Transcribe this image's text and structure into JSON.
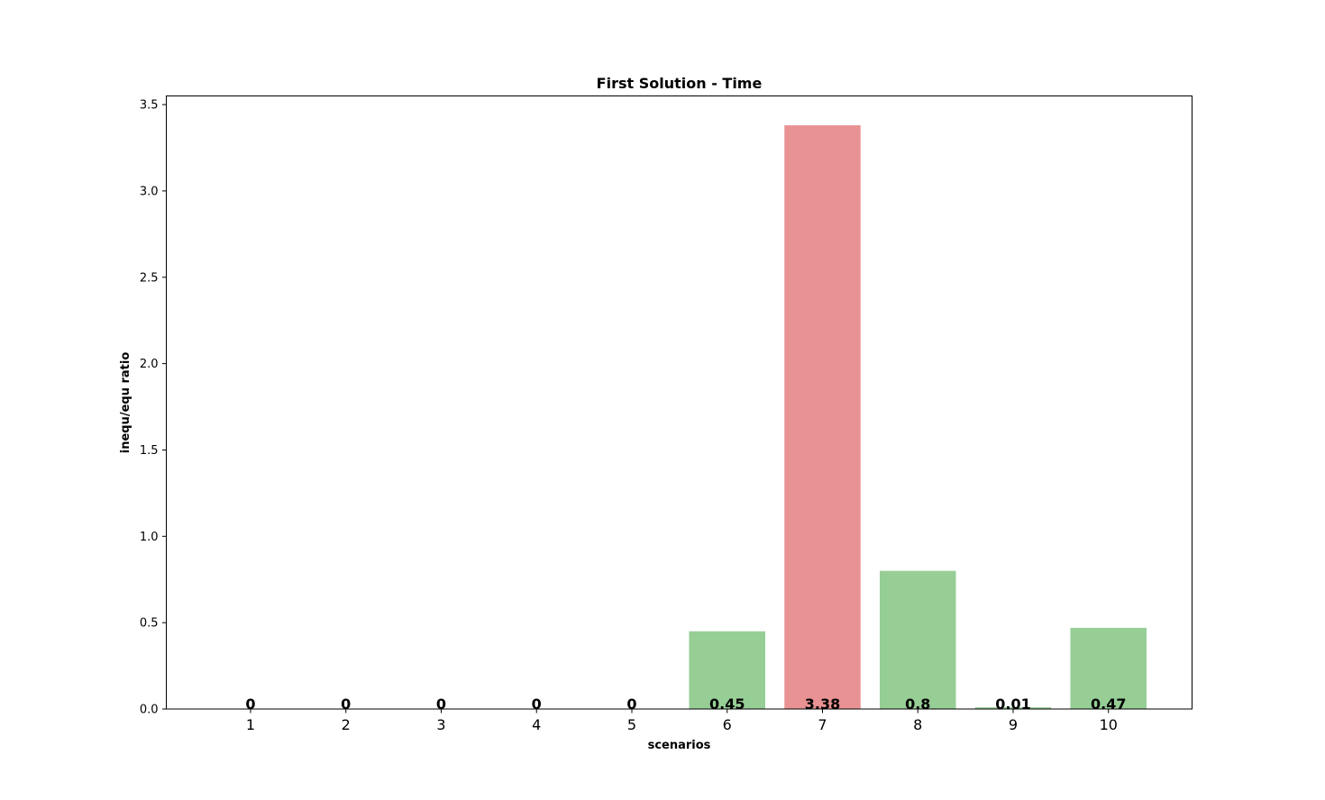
{
  "chart_data": {
    "type": "bar",
    "title": "First Solution - Time",
    "xlabel": "scenarios",
    "ylabel": "inequ/equ ratio",
    "categories": [
      "1",
      "2",
      "3",
      "4",
      "5",
      "6",
      "7",
      "8",
      "9",
      "10"
    ],
    "values": [
      0,
      0,
      0,
      0,
      0,
      0.45,
      3.38,
      0.8,
      0.01,
      0.47
    ],
    "data_labels": [
      "0",
      "0",
      "0",
      "0",
      "0",
      "0.45",
      "3.38",
      "0.8",
      "0.01",
      "0.47"
    ],
    "ylim": [
      0,
      3.55
    ],
    "yticks": [
      "0.0",
      "0.5",
      "1.0",
      "1.5",
      "2.0",
      "2.5",
      "3.0",
      "3.5"
    ],
    "ytick_values": [
      0,
      0.5,
      1.0,
      1.5,
      2.0,
      2.5,
      3.0,
      3.5
    ],
    "highlight_threshold": 1.0,
    "colors": {
      "bar_normal": "#96ce96",
      "bar_highlight": "#e99293",
      "axes": "#000000",
      "background": "#ffffff"
    },
    "grid": false,
    "legend": "none"
  }
}
